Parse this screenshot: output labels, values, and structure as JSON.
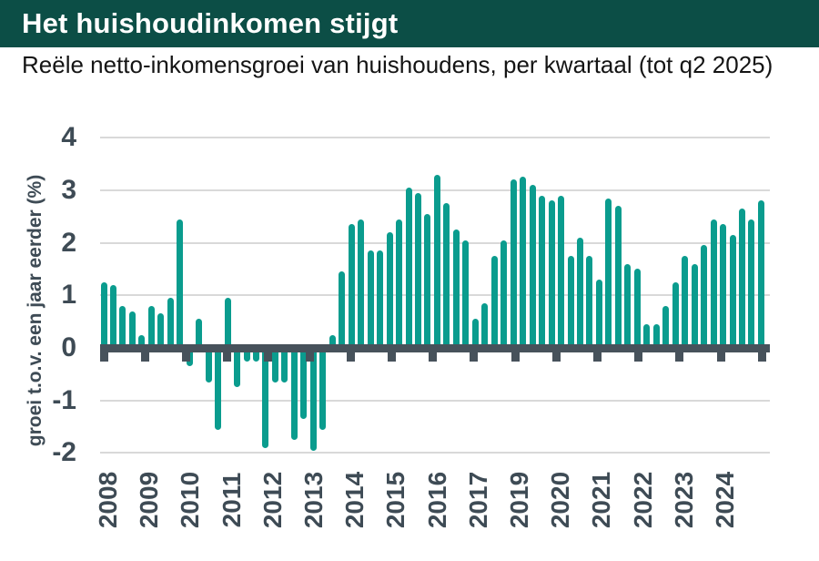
{
  "header": {
    "title": "Het huishoudinkomen stijgt"
  },
  "subtitle": "Reële netto-inkomensgroei van huishoudens, per kwartaal (tot q2 2025)",
  "colors": {
    "header_bg": "#0C4E46",
    "title_text": "#FFFFFF",
    "subtitle_text": "#141414",
    "bar": "#0A9C8E",
    "axis": "#47525B",
    "labels": "#3E4B55",
    "grid": "#D9D9D9"
  },
  "chart_data": {
    "type": "bar",
    "title": "Het huishoudinkomen stijgt",
    "subtitle": "Reële netto-inkomensgroei van huishoudens, per kwartaal (tot q2 2025)",
    "xlabel": "",
    "ylabel": "groei t.o.v. een jaar eerder (%)",
    "ylim": [
      -2.1,
      4.2
    ],
    "yticks": [
      4,
      3,
      2,
      1,
      0,
      -1,
      -2
    ],
    "grid": true,
    "legend": false,
    "x_tick_labels": [
      "2008",
      "2009",
      "2010",
      "2011",
      "2012",
      "2013",
      "2014",
      "2015",
      "2016",
      "2017",
      "2019",
      "2020",
      "2021",
      "2022",
      "2023",
      "2024",
      ""
    ],
    "categories": [
      "2008 Q1",
      "2008 Q2",
      "2008 Q3",
      "2008 Q4",
      "2009 Q1",
      "2009 Q2",
      "2009 Q3",
      "2009 Q4",
      "2010 Q1",
      "2010 Q2",
      "2010 Q3",
      "2010 Q4",
      "2011 Q1",
      "2011 Q2",
      "2011 Q3",
      "2011 Q4",
      "2012 Q1",
      "2012 Q2",
      "2012 Q3",
      "2012 Q4",
      "2013 Q1",
      "2013 Q2",
      "2013 Q3",
      "2013 Q4",
      "2014 Q1",
      "2014 Q2",
      "2014 Q3",
      "2014 Q4",
      "2015 Q1",
      "2015 Q2",
      "2015 Q3",
      "2015 Q4",
      "2016 Q1",
      "2016 Q2",
      "2016 Q3",
      "2016 Q4",
      "2017 Q1",
      "2017 Q2",
      "2017 Q3",
      "2017 Q4",
      "2018 Q1",
      "2018 Q2",
      "2018 Q3",
      "2018 Q4",
      "2019 Q1",
      "2019 Q2",
      "2019 Q3",
      "2019 Q4",
      "2020 Q1",
      "2020 Q2",
      "2020 Q3",
      "2020 Q4",
      "2021 Q1",
      "2021 Q2",
      "2021 Q3",
      "2021 Q4",
      "2022 Q1",
      "2022 Q2",
      "2022 Q3",
      "2022 Q4",
      "2023 Q1",
      "2023 Q2",
      "2023 Q3",
      "2023 Q4",
      "2024 Q1",
      "2024 Q2",
      "2024 Q3",
      "2024 Q4",
      "2025 Q1",
      "2025 Q2"
    ],
    "values": [
      1.25,
      1.2,
      0.8,
      0.7,
      0.25,
      0.8,
      0.65,
      0.95,
      2.45,
      -0.3,
      0.55,
      -0.6,
      -1.5,
      0.95,
      -0.7,
      -0.2,
      -0.2,
      -1.85,
      -0.6,
      -0.6,
      -1.7,
      -1.3,
      -1.9,
      -1.5,
      0.25,
      1.45,
      2.35,
      2.45,
      1.85,
      1.85,
      2.2,
      2.45,
      3.05,
      2.95,
      2.55,
      3.3,
      2.75,
      2.25,
      2.05,
      0.55,
      0.85,
      1.75,
      2.05,
      3.2,
      3.25,
      3.1,
      2.9,
      2.8,
      2.9,
      1.75,
      2.1,
      1.75,
      1.3,
      2.85,
      2.7,
      1.6,
      1.5,
      0.45,
      0.45,
      0.8,
      1.25,
      1.75,
      1.6,
      1.95,
      2.45,
      2.35,
      2.15,
      2.65,
      2.45,
      2.8
    ]
  }
}
